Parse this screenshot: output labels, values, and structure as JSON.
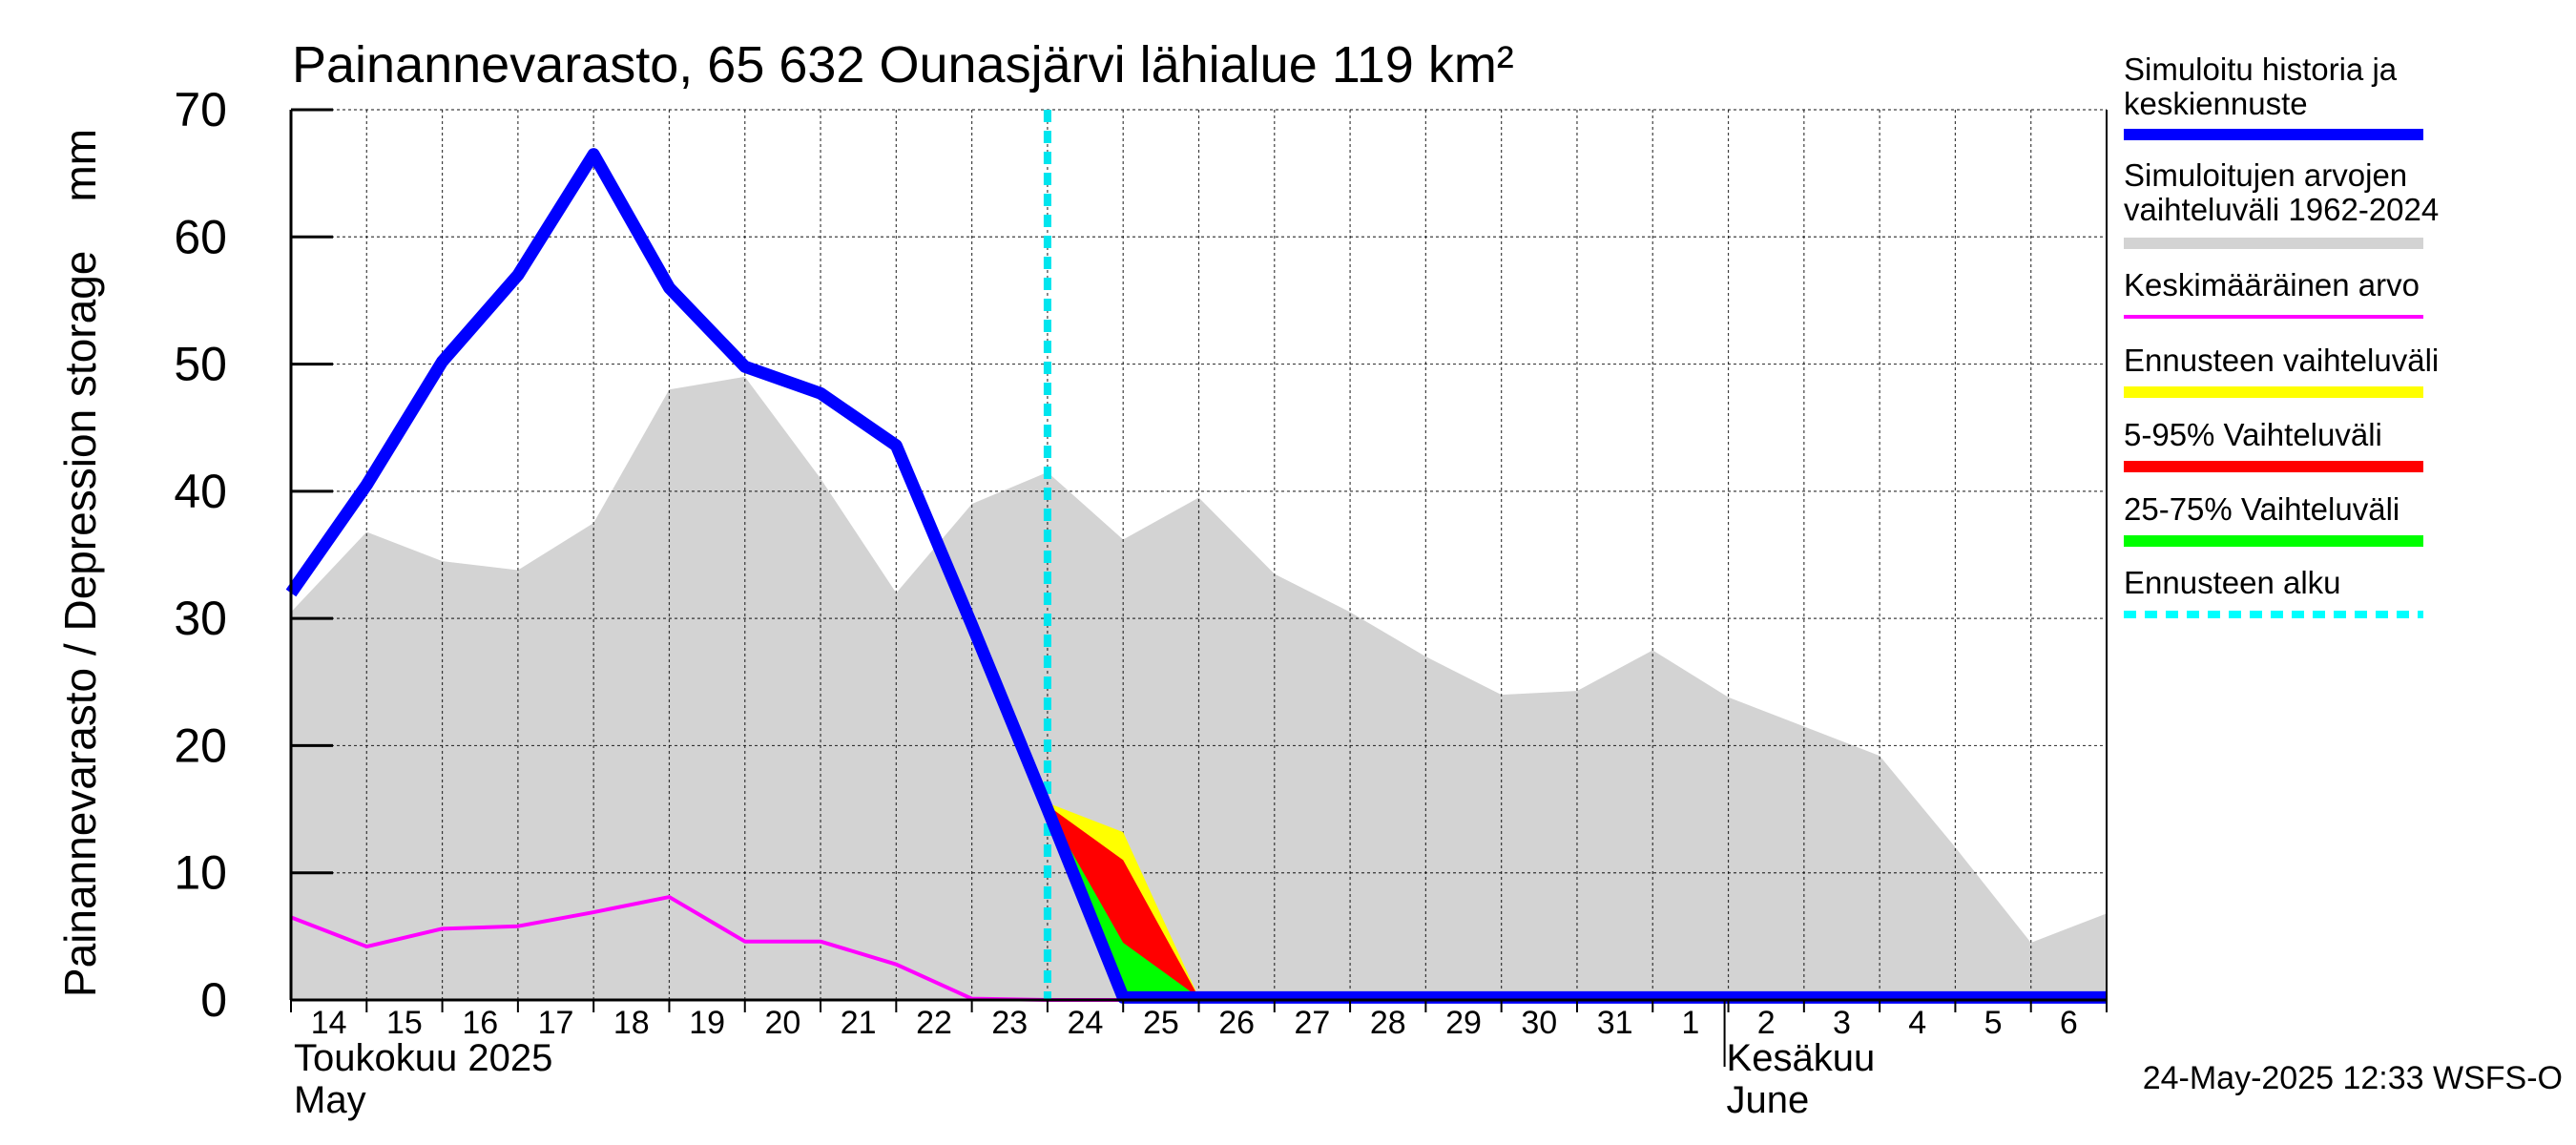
{
  "chart_data": {
    "type": "area",
    "title": "Painannevarasto, 65 632 Ounasjärvi lähialue 119 km²",
    "ylabel": "Painannevarasto / Depression storage    mm",
    "ylim": [
      0,
      70
    ],
    "y_ticks": [
      0,
      10,
      20,
      30,
      40,
      50,
      60,
      70
    ],
    "x_range_days": [
      0,
      24
    ],
    "day_labels": [
      "14",
      "15",
      "16",
      "17",
      "18",
      "19",
      "20",
      "21",
      "22",
      "23",
      "24",
      "25",
      "26",
      "27",
      "28",
      "29",
      "30",
      "31",
      "1",
      "2",
      "3",
      "4",
      "5",
      "6"
    ],
    "month_labels": [
      {
        "name": "Toukokuu  2025",
        "english": "May",
        "day": 0
      },
      {
        "name": "Kesäkuu",
        "english": "June",
        "day": 19
      }
    ],
    "forecast_start_day": 10,
    "timestamp": "24-May-2025 12:33 WSFS-O",
    "legend": [
      {
        "label": "Simuloitu historia ja keskiennuste",
        "color": "#0000ff"
      },
      {
        "label": "Simuloitujen arvojen vaihteluväli 1962-2024",
        "color": "#d3d3d3"
      },
      {
        "label": "Keskimääräinen arvo",
        "color": "#ff00ff"
      },
      {
        "label": "Ennusteen vaihteluväli",
        "color": "#ffff00"
      },
      {
        "label": "5-95% Vaihteluväli",
        "color": "#ff0000"
      },
      {
        "label": "25-75% Vaihteluväli",
        "color": "#00ff00"
      },
      {
        "label": "Ennusteen alku",
        "color": "#00ffff"
      }
    ],
    "series": {
      "historical_range": {
        "name": "Simuloitujen arvojen vaihteluväli 1962-2024",
        "x": [
          0,
          1,
          2,
          3,
          4,
          5,
          6,
          7,
          8,
          9,
          10,
          11,
          12,
          13,
          14,
          15,
          16,
          17,
          18,
          19,
          20,
          21,
          22,
          23,
          24
        ],
        "upper": [
          30.5,
          36.8,
          34.5,
          33.8,
          37.5,
          48.0,
          49.0,
          41.0,
          32.0,
          39.0,
          41.5,
          36.2,
          39.5,
          33.5,
          30.5,
          27.0,
          24.0,
          24.3,
          27.5,
          23.8,
          21.5,
          19.2,
          12.0,
          4.5,
          6.8
        ],
        "lower": [
          0,
          0,
          0,
          0,
          0,
          0,
          0,
          0,
          0,
          0,
          0,
          0,
          0,
          0,
          0,
          0,
          0,
          0,
          0,
          0,
          0,
          0,
          0,
          0,
          0
        ]
      },
      "simulated": {
        "name": "Simuloitu historia ja keskiennuste",
        "x": [
          0,
          1,
          2,
          3,
          4,
          5,
          6,
          7,
          8,
          9,
          10,
          11,
          24
        ],
        "values": [
          32.0,
          40.5,
          50.2,
          57.0,
          66.5,
          56.0,
          49.8,
          47.7,
          43.6,
          29.5,
          15.0,
          0.2,
          0.2
        ]
      },
      "mean": {
        "name": "Keskimääräinen arvo",
        "x": [
          0,
          1,
          2,
          3,
          4,
          5,
          6,
          7,
          8,
          9,
          10,
          11,
          24
        ],
        "values": [
          6.5,
          4.2,
          5.6,
          5.8,
          6.9,
          8.1,
          4.6,
          4.6,
          2.8,
          0.1,
          0,
          0,
          0
        ]
      },
      "forecast_range": {
        "name": "Ennusteen vaihteluväli",
        "x": [
          10,
          11,
          12
        ],
        "upper": [
          15.5,
          13.2,
          0.2
        ],
        "lower": [
          15.0,
          0.2,
          0.2
        ]
      },
      "p5_95": {
        "name": "5-95% Vaihteluväli",
        "x": [
          10,
          11,
          12
        ],
        "upper": [
          15.3,
          11.0,
          0.2
        ],
        "lower": [
          15.0,
          1.5,
          0.2
        ]
      },
      "p25_75": {
        "name": "25-75% Vaihteluväli",
        "x": [
          10,
          11,
          12
        ],
        "upper": [
          15.0,
          4.5,
          0.2
        ],
        "lower": [
          15.0,
          0.2,
          0.2
        ]
      }
    }
  }
}
